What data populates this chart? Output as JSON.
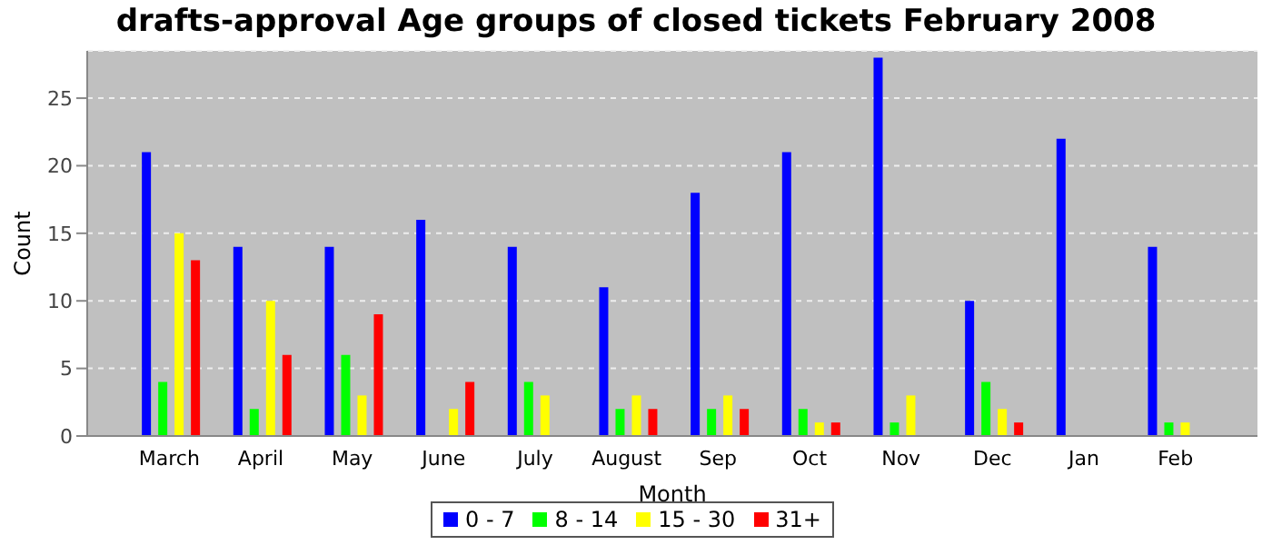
{
  "chart_data": {
    "type": "bar",
    "title": "drafts-approval Age groups of closed tickets February 2008",
    "xlabel": "Month",
    "ylabel": "Count",
    "categories": [
      "March",
      "April",
      "May",
      "June",
      "July",
      "August",
      "Sep",
      "Oct",
      "Nov",
      "Dec",
      "Jan",
      "Feb"
    ],
    "series": [
      {
        "name": "0 - 7",
        "color": "#0000ff",
        "values": [
          21,
          14,
          14,
          16,
          14,
          11,
          18,
          21,
          28,
          10,
          22,
          14
        ]
      },
      {
        "name": "8 - 14",
        "color": "#00ff00",
        "values": [
          4,
          2,
          6,
          0,
          4,
          2,
          2,
          2,
          1,
          4,
          0,
          1
        ]
      },
      {
        "name": "15 - 30",
        "color": "#ffff00",
        "values": [
          15,
          10,
          3,
          2,
          3,
          3,
          3,
          1,
          3,
          2,
          0,
          1
        ]
      },
      {
        "name": "31+",
        "color": "#ff0000",
        "values": [
          13,
          6,
          9,
          4,
          0,
          2,
          2,
          1,
          0,
          1,
          0,
          0
        ]
      }
    ],
    "ylim": [
      0,
      28.5
    ],
    "yticks": [
      0,
      5,
      10,
      15,
      20,
      25
    ],
    "grid": "y",
    "legend": "bottom"
  }
}
